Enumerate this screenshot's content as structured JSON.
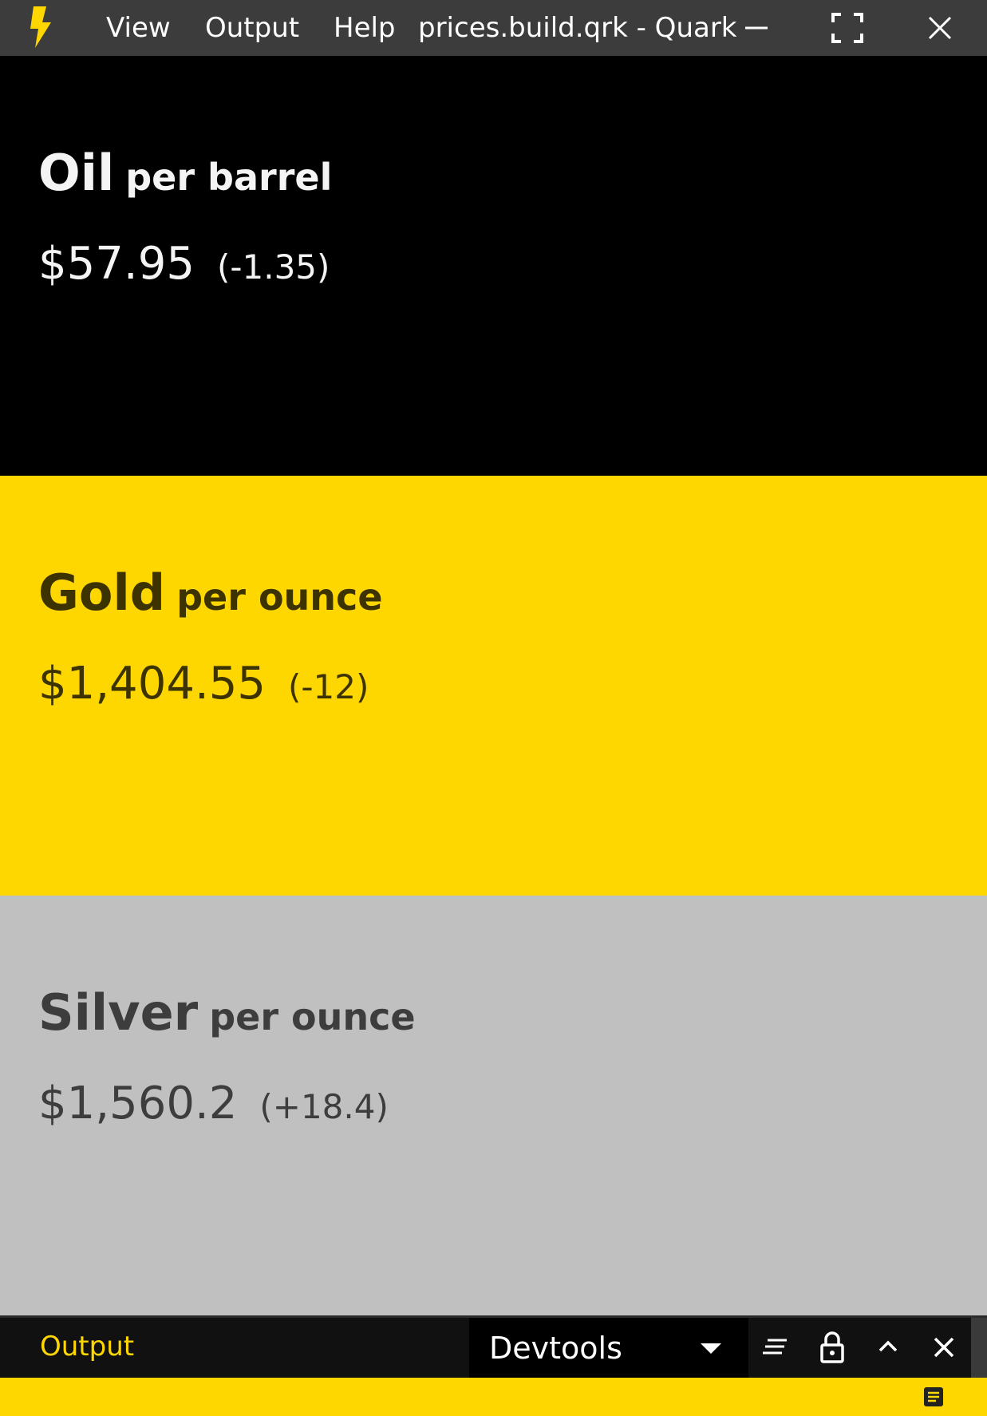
{
  "titlebar": {
    "menu": [
      "View",
      "Output",
      "Help"
    ],
    "title": "prices.build.qrk - Quark",
    "icons": {
      "logo": "lightning-bolt-icon",
      "minimize": "minimize-icon",
      "maximize": "fullscreen-icon",
      "close": "close-icon"
    },
    "logo_color": "#FFD700"
  },
  "commodities": [
    {
      "name": "Oil",
      "unit": "per barrel",
      "price": "$57.95",
      "change": "(-1.35)",
      "background": "#000000",
      "text_color": "#f4f4f4"
    },
    {
      "name": "Gold",
      "unit": "per ounce",
      "price": "$1,404.55",
      "change": "(-12)",
      "background": "#FFD700",
      "text_color": "#3c3300"
    },
    {
      "name": "Silver",
      "unit": "per ounce",
      "price": "$1,560.2",
      "change": "(+18.4)",
      "background": "#C0C0C0",
      "text_color": "#3d3d3d"
    }
  ],
  "output_panel": {
    "tab_label": "Output",
    "selected_view": "Devtools",
    "icons": {
      "dropdown": "chevron-down-icon",
      "clear": "clear-lines-icon",
      "lock": "lock-icon",
      "collapse": "chevron-up-icon",
      "close": "close-icon"
    }
  },
  "statusbar": {
    "icon": "log-icon",
    "background": "#FFD700"
  }
}
